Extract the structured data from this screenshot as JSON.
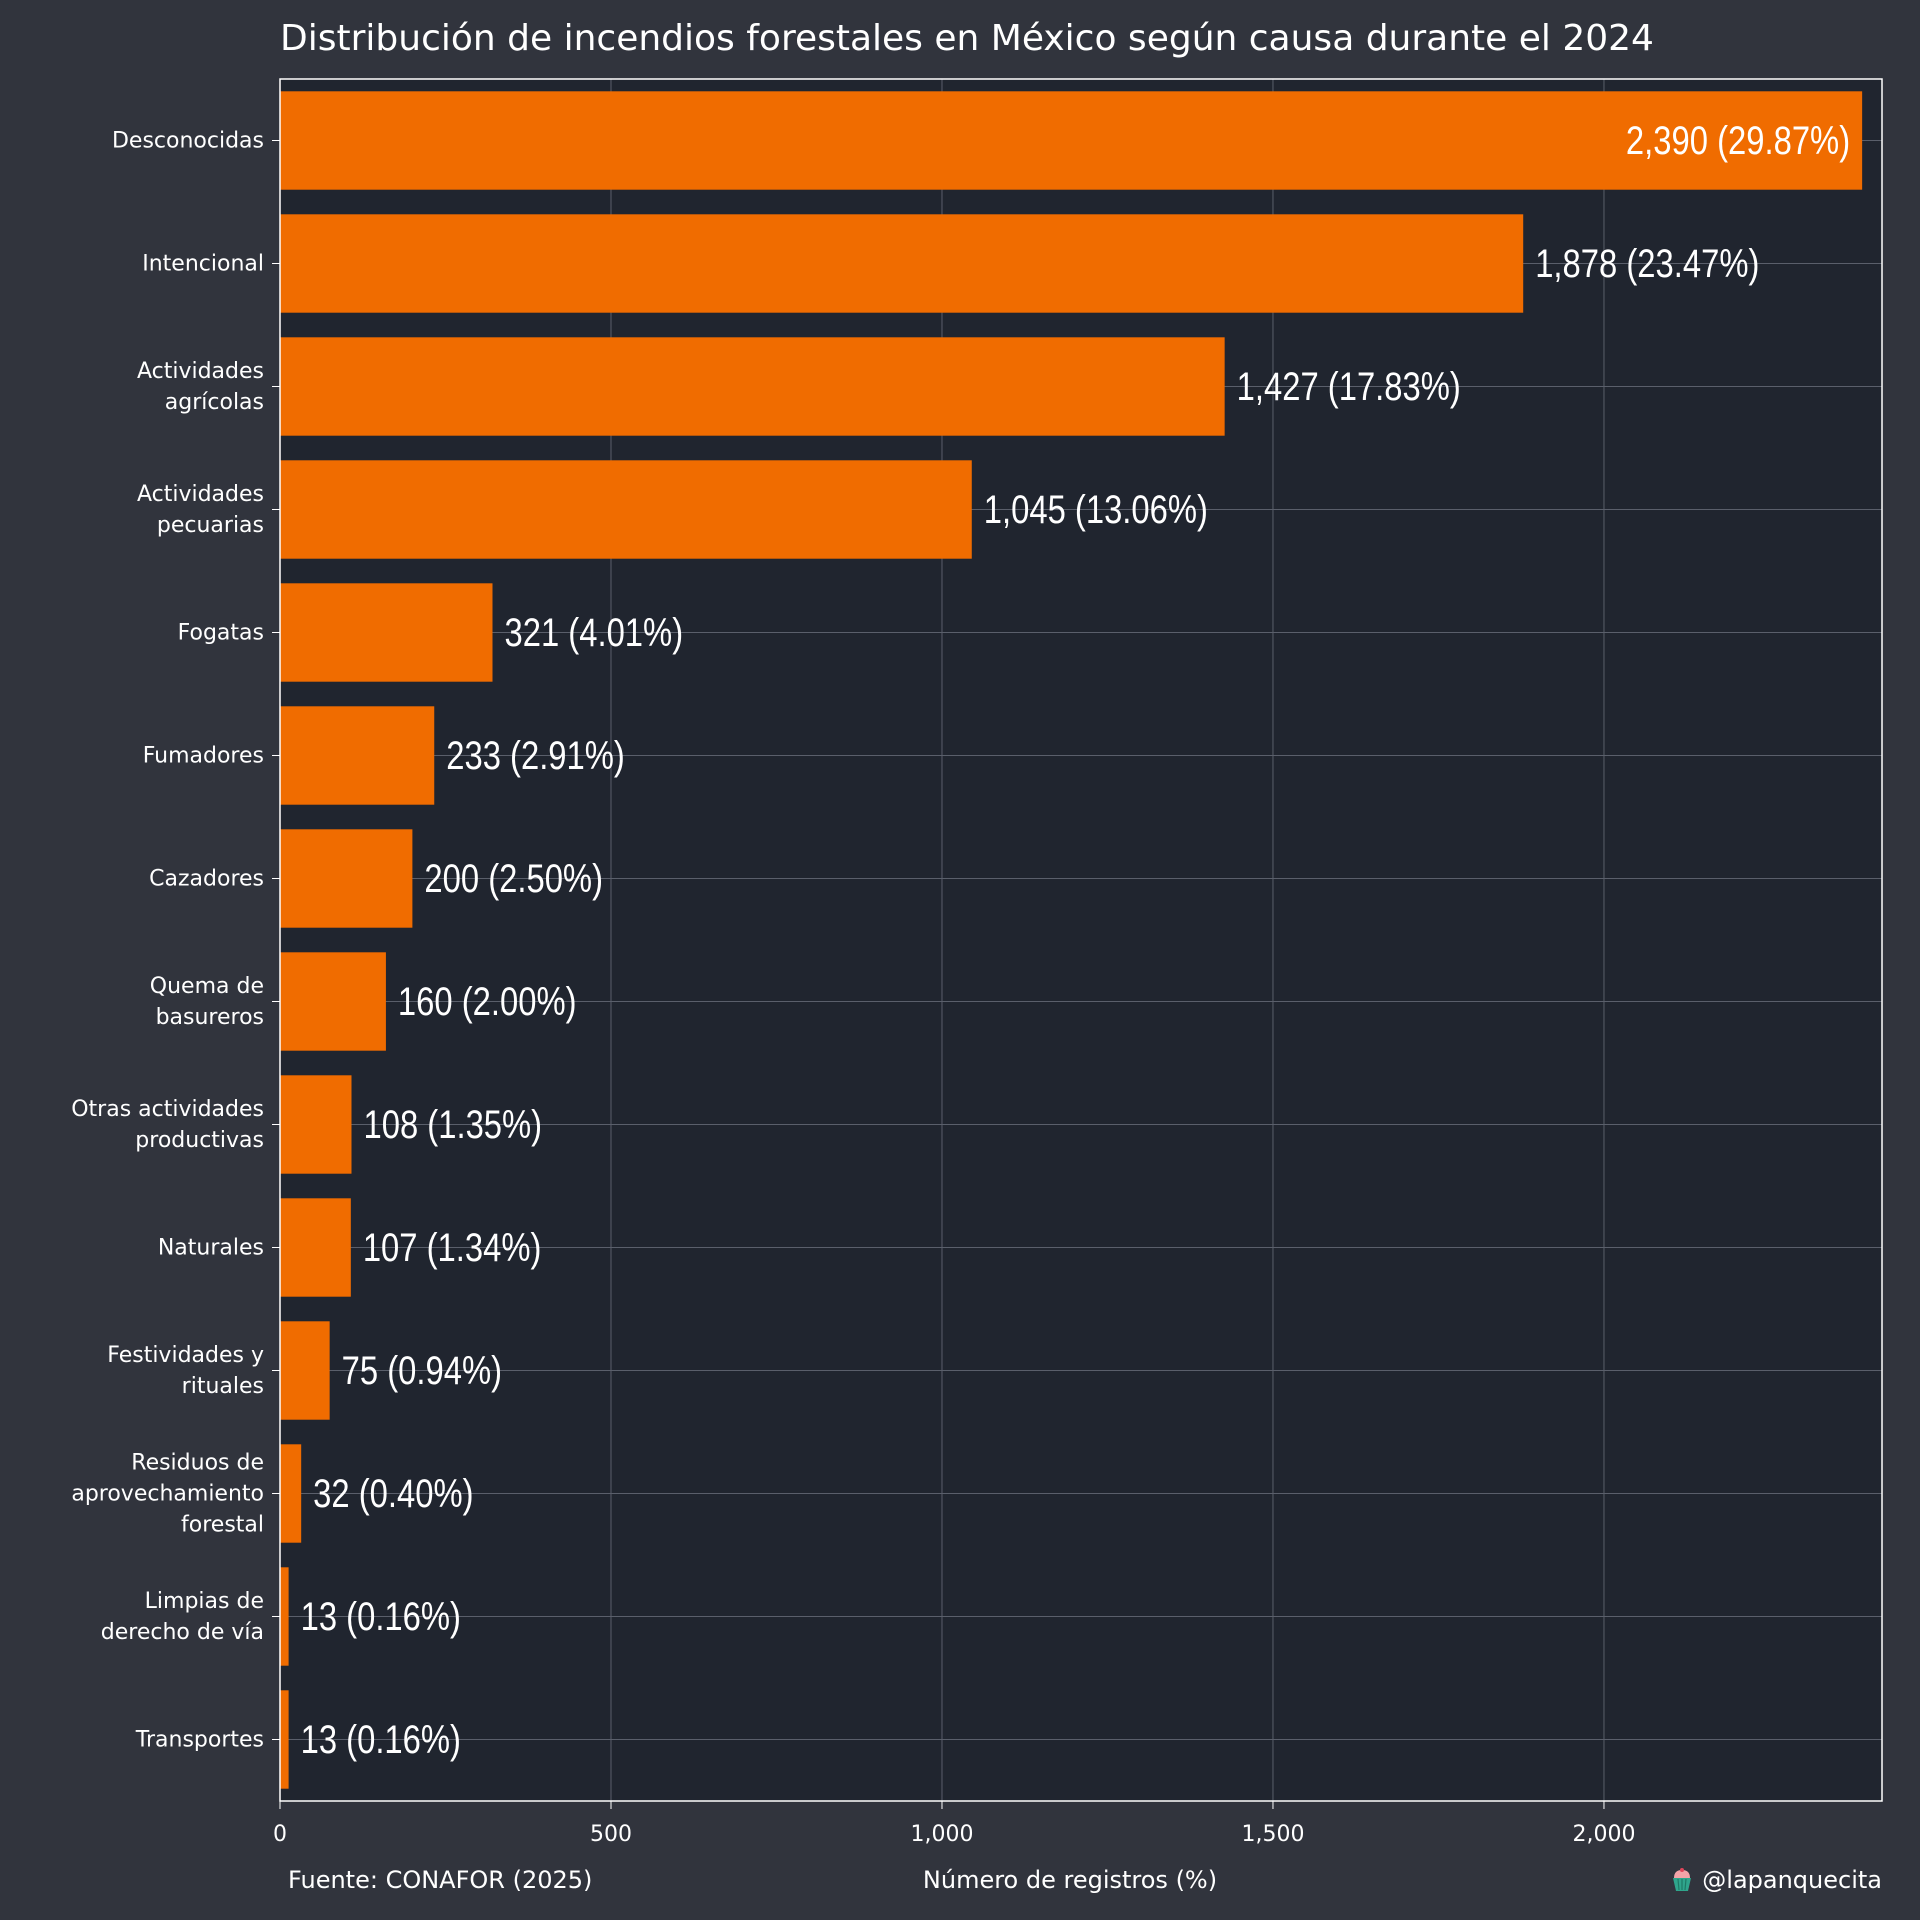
{
  "chart_data": {
    "type": "bar",
    "orientation": "horizontal",
    "title": "Distribución de incendios forestales en México según causa durante el 2024",
    "xlabel": "Número de registros (%)",
    "ylabel": "",
    "xlim": [
      0,
      2420
    ],
    "x_ticks": [
      {
        "value": 0,
        "label": "0"
      },
      {
        "value": 500,
        "label": "500"
      },
      {
        "value": 1000,
        "label": "1,000"
      },
      {
        "value": 1500,
        "label": "1,500"
      },
      {
        "value": 2000,
        "label": "2,000"
      }
    ],
    "grid": true,
    "bar_color": "#f06c00",
    "categories": [
      [
        "Desconocidas"
      ],
      [
        "Intencional"
      ],
      [
        "Actividades",
        "agrícolas"
      ],
      [
        "Actividades",
        "pecuarias"
      ],
      [
        "Fogatas"
      ],
      [
        "Fumadores"
      ],
      [
        "Cazadores"
      ],
      [
        "Quema de",
        "basureros"
      ],
      [
        "Otras actividades",
        "productivas"
      ],
      [
        "Naturales"
      ],
      [
        "Festividades y",
        "rituales"
      ],
      [
        "Residuos de",
        "aprovechamiento",
        "forestal"
      ],
      [
        "Limpias de",
        "derecho de vía"
      ],
      [
        "Transportes"
      ]
    ],
    "values": [
      2390,
      1878,
      1427,
      1045,
      321,
      233,
      200,
      160,
      108,
      107,
      75,
      32,
      13,
      13
    ],
    "data_labels": [
      "2,390 (29.87%)",
      "1,878 (23.47%)",
      "1,427 (17.83%)",
      "1,045 (13.06%)",
      "321 (4.01%)",
      "233 (2.91%)",
      "200 (2.50%)",
      "160 (2.00%)",
      "108 (1.35%)",
      "107 (1.34%)",
      "75 (0.94%)",
      "32 (0.40%)",
      "13 (0.16%)",
      "13 (0.16%)"
    ]
  },
  "footer": {
    "source": "Fuente: CONAFOR (2025)",
    "credit": "@lapanquecita",
    "credit_icon": "cupcake-icon"
  },
  "colors": {
    "background": "#31343d",
    "plot_background": "#20252f",
    "grid": "#5a5f6b",
    "text": "#ffffff"
  }
}
